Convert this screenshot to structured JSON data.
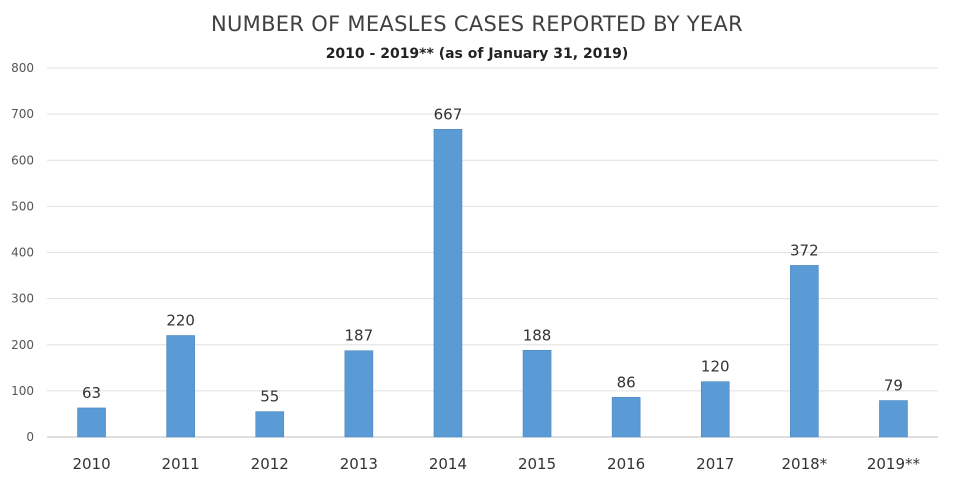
{
  "chart_data": {
    "type": "bar",
    "title": "NUMBER OF MEASLES CASES REPORTED BY YEAR",
    "subtitle": "2010 - 2019** (as of January 31, 2019)",
    "categories": [
      "2010",
      "2011",
      "2012",
      "2013",
      "2014",
      "2015",
      "2016",
      "2017",
      "2018*",
      "2019**"
    ],
    "values": [
      63,
      220,
      55,
      187,
      667,
      188,
      86,
      120,
      372,
      79
    ],
    "data_labels": [
      "63",
      "220",
      "55",
      "187",
      "667",
      "188",
      "86",
      "120",
      "372",
      "79"
    ],
    "ylim": [
      0,
      800
    ],
    "yticks": [
      0,
      100,
      200,
      300,
      400,
      500,
      600,
      700,
      800
    ],
    "grid": true,
    "bar_color": "#5b9bd5",
    "grid_color": "#e0e0e0"
  }
}
